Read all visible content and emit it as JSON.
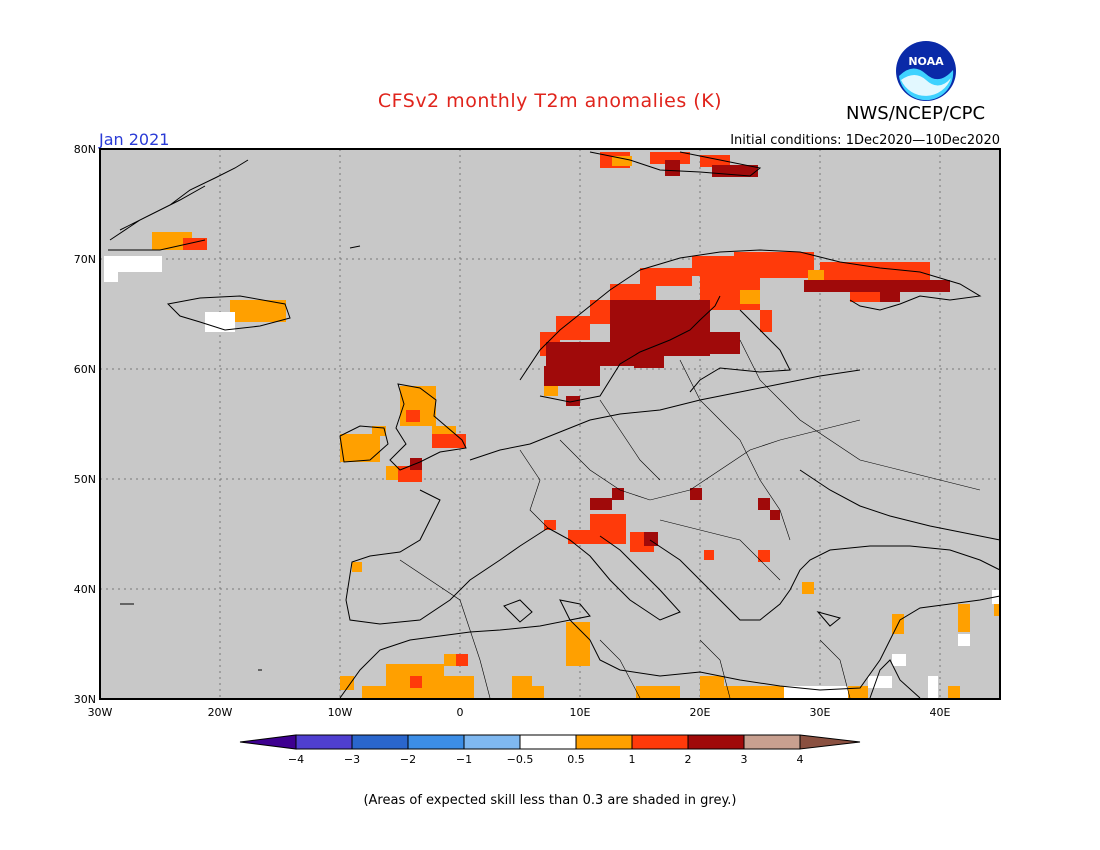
{
  "header": {
    "title": "CFSv2 monthly T2m anomalies (K)",
    "agency": "NWS/NCEP/CPC",
    "month": "Jan 2021",
    "initial_conditions": "Initial conditions: 1Dec2020—10Dec2020",
    "logo_text": "NOAA"
  },
  "map": {
    "lat_labels": [
      "80N",
      "70N",
      "60N",
      "50N",
      "40N",
      "30N"
    ],
    "lon_labels": [
      "30W",
      "20W",
      "10W",
      "0",
      "10E",
      "20E",
      "30E",
      "40E"
    ],
    "background_color": "#c8c8c8"
  },
  "colorbar": {
    "labels": [
      "−4",
      "−3",
      "−2",
      "−1",
      "−0.5",
      "0.5",
      "1",
      "2",
      "3",
      "4"
    ],
    "colors": [
      "#3e0090",
      "#4f3fd0",
      "#2a66cc",
      "#3c8ee6",
      "#7fb8f0",
      "#ffffff",
      "#ffa000",
      "#ff3a0a",
      "#a00a0a",
      "#c8a090",
      "#8a5040"
    ]
  },
  "footnote": "(Areas of expected skill less than 0.3 are shaded in grey.)"
}
